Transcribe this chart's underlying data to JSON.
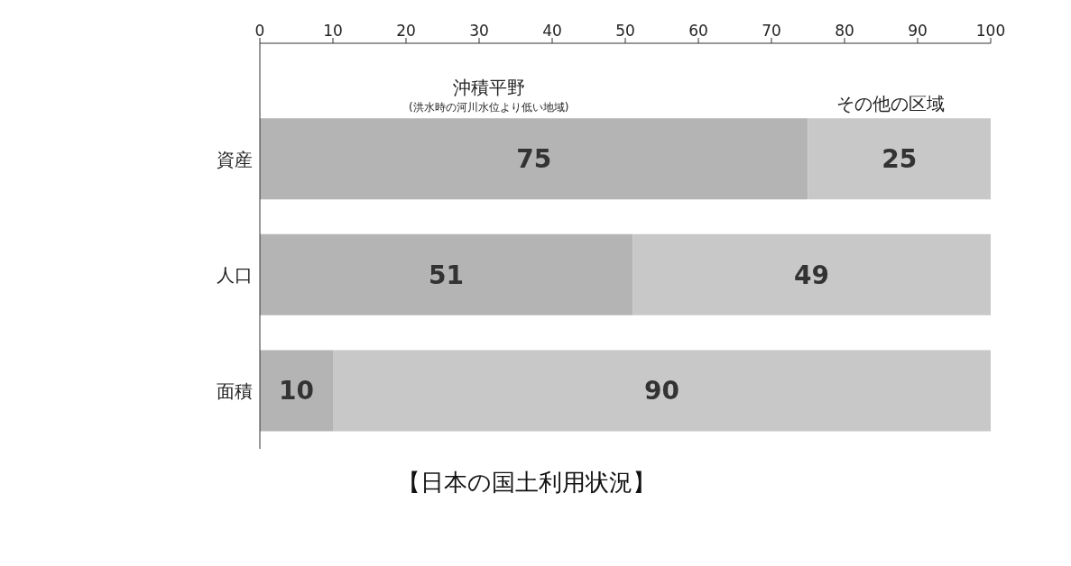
{
  "chart_data": {
    "type": "bar",
    "orientation": "horizontal",
    "stacked": true,
    "title": "【日本の国土利用状況】",
    "categories": [
      "資産",
      "人口",
      "面積"
    ],
    "series": [
      {
        "name": "沖積平野",
        "color": "#b4b4b4",
        "values": [
          75,
          51,
          10
        ]
      },
      {
        "name": "その他の区域",
        "color": "#c8c8c8",
        "values": [
          25,
          49,
          90
        ]
      }
    ],
    "annotations": [
      "(洪水時の河川水位より低い地域)"
    ],
    "xlim": [
      0,
      100
    ],
    "xticks": [
      0,
      10,
      20,
      30,
      40,
      50,
      60,
      70,
      80,
      90,
      100
    ],
    "data_labels": true
  }
}
